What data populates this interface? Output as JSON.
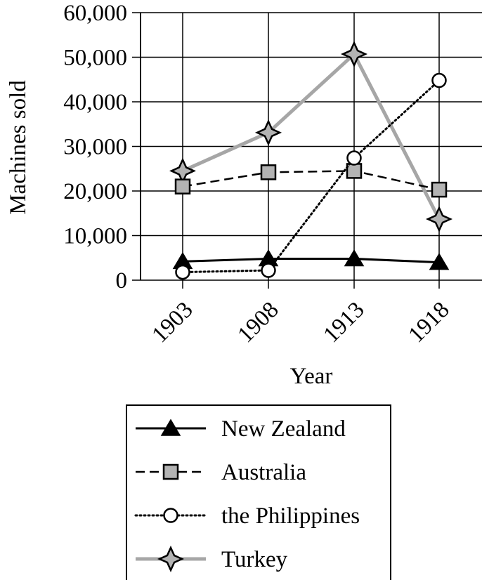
{
  "chart_data": {
    "type": "line",
    "title": "",
    "xlabel": "Year",
    "ylabel": "Machines sold",
    "x": [
      "1903",
      "1908",
      "1913",
      "1918"
    ],
    "ylim": [
      0,
      60000
    ],
    "yticks": [
      0,
      10000,
      20000,
      30000,
      40000,
      50000,
      60000
    ],
    "ytick_labels": [
      "0",
      "10,000",
      "20,000",
      "30,000",
      "40,000",
      "50,000",
      "60,000"
    ],
    "grid": true,
    "legend_position": "bottom",
    "series": [
      {
        "name": "New Zealand",
        "values": [
          4200,
          4800,
          4800,
          4000
        ],
        "color": "#000000",
        "line_style": "solid",
        "marker": "triangle"
      },
      {
        "name": "Australia",
        "values": [
          21000,
          24200,
          24500,
          20300
        ],
        "color": "#000000",
        "line_style": "dashed",
        "marker": "square"
      },
      {
        "name": "the Philippines",
        "values": [
          1800,
          2200,
          27400,
          44800
        ],
        "color": "#000000",
        "line_style": "dotted",
        "marker": "circle"
      },
      {
        "name": "Turkey",
        "values": [
          24500,
          33100,
          50700,
          13700
        ],
        "color": "#a6a6a6",
        "line_style": "solid",
        "marker": "star"
      }
    ]
  }
}
